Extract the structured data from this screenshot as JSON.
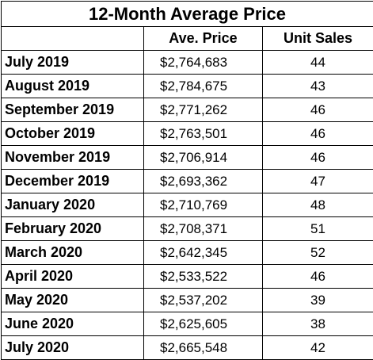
{
  "table": {
    "title": "12-Month Average Price",
    "headers": [
      "",
      "Ave. Price",
      "Unit Sales"
    ],
    "rows": [
      {
        "month": "July 2019",
        "price": "$2,764,683",
        "sales": "44"
      },
      {
        "month": "August 2019",
        "price": "$2,784,675",
        "sales": "43"
      },
      {
        "month": "September 2019",
        "price": "$2,771,262",
        "sales": "46"
      },
      {
        "month": "October 2019",
        "price": "$2,763,501",
        "sales": "46"
      },
      {
        "month": "November 2019",
        "price": "$2,706,914",
        "sales": "46"
      },
      {
        "month": "December 2019",
        "price": "$2,693,362",
        "sales": "47"
      },
      {
        "month": "January 2020",
        "price": "$2,710,769",
        "sales": "48"
      },
      {
        "month": "February 2020",
        "price": "$2,708,371",
        "sales": "51"
      },
      {
        "month": "March 2020",
        "price": "$2,642,345",
        "sales": "52"
      },
      {
        "month": "April 2020",
        "price": "$2,533,522",
        "sales": "46"
      },
      {
        "month": "May 2020",
        "price": "$2,537,202",
        "sales": "39"
      },
      {
        "month": "June 2020",
        "price": "$2,625,605",
        "sales": "38"
      },
      {
        "month": "July 2020",
        "price": "$2,665,548",
        "sales": "42"
      }
    ]
  }
}
